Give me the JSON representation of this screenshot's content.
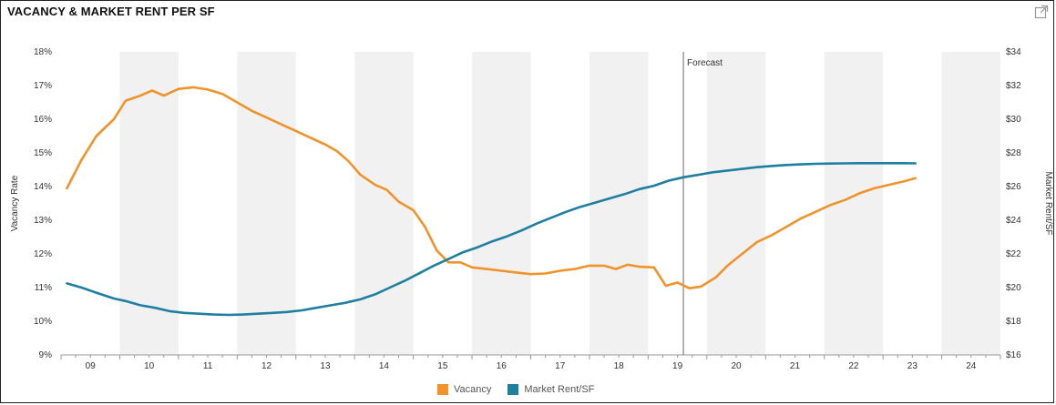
{
  "title": "VACANCY & MARKET RENT PER SF",
  "expand_icon": "external-link-icon",
  "chart_data": {
    "type": "line",
    "x_tick_labels": [
      "09",
      "10",
      "11",
      "12",
      "13",
      "14",
      "15",
      "16",
      "17",
      "18",
      "19",
      "20",
      "21",
      "22",
      "23",
      "24"
    ],
    "xlim": [
      2008.5,
      2024.5
    ],
    "left_axis": {
      "label": "Vacancy Rate",
      "ticks": [
        "9%",
        "10%",
        "11%",
        "12%",
        "13%",
        "14%",
        "15%",
        "16%",
        "17%",
        "18%"
      ],
      "ylim": [
        9,
        18
      ]
    },
    "right_axis": {
      "label": "Market Rent/SF",
      "ticks": [
        "$16",
        "$18",
        "$20",
        "$22",
        "$24",
        "$26",
        "$28",
        "$30",
        "$32",
        "$34"
      ],
      "ylim": [
        16,
        34
      ]
    },
    "annotation": {
      "text": "Forecast",
      "x": 2019.1
    },
    "shaded_bands": [
      [
        2009.5,
        2010.5
      ],
      [
        2011.5,
        2012.5
      ],
      [
        2013.5,
        2014.5
      ],
      [
        2015.5,
        2016.5
      ],
      [
        2017.5,
        2018.5
      ],
      [
        2019.5,
        2020.5
      ],
      [
        2021.5,
        2022.5
      ],
      [
        2023.5,
        2024.5
      ]
    ],
    "series": [
      {
        "name": "Vacancy",
        "axis": "left",
        "color": "#f0932b",
        "points": [
          [
            2008.6,
            13.95
          ],
          [
            2008.85,
            14.8
          ],
          [
            2009.1,
            15.5
          ],
          [
            2009.4,
            16.0
          ],
          [
            2009.6,
            16.55
          ],
          [
            2009.85,
            16.7
          ],
          [
            2010.05,
            16.85
          ],
          [
            2010.25,
            16.7
          ],
          [
            2010.5,
            16.9
          ],
          [
            2010.75,
            16.95
          ],
          [
            2011.0,
            16.88
          ],
          [
            2011.25,
            16.75
          ],
          [
            2011.5,
            16.5
          ],
          [
            2011.75,
            16.25
          ],
          [
            2012.0,
            16.05
          ],
          [
            2012.25,
            15.85
          ],
          [
            2012.5,
            15.65
          ],
          [
            2012.75,
            15.45
          ],
          [
            2013.0,
            15.25
          ],
          [
            2013.2,
            15.05
          ],
          [
            2013.4,
            14.75
          ],
          [
            2013.6,
            14.35
          ],
          [
            2013.85,
            14.05
          ],
          [
            2014.05,
            13.9
          ],
          [
            2014.25,
            13.55
          ],
          [
            2014.5,
            13.3
          ],
          [
            2014.7,
            12.8
          ],
          [
            2014.9,
            12.1
          ],
          [
            2015.1,
            11.75
          ],
          [
            2015.3,
            11.75
          ],
          [
            2015.5,
            11.6
          ],
          [
            2015.75,
            11.55
          ],
          [
            2016.0,
            11.5
          ],
          [
            2016.25,
            11.45
          ],
          [
            2016.5,
            11.4
          ],
          [
            2016.75,
            11.42
          ],
          [
            2017.0,
            11.5
          ],
          [
            2017.25,
            11.55
          ],
          [
            2017.5,
            11.65
          ],
          [
            2017.75,
            11.65
          ],
          [
            2017.95,
            11.55
          ],
          [
            2018.15,
            11.68
          ],
          [
            2018.35,
            11.62
          ],
          [
            2018.6,
            11.6
          ],
          [
            2018.8,
            11.05
          ],
          [
            2019.0,
            11.15
          ],
          [
            2019.2,
            10.98
          ],
          [
            2019.4,
            11.03
          ],
          [
            2019.65,
            11.3
          ],
          [
            2019.85,
            11.65
          ],
          [
            2020.1,
            12.0
          ],
          [
            2020.35,
            12.35
          ],
          [
            2020.6,
            12.55
          ],
          [
            2020.85,
            12.8
          ],
          [
            2021.1,
            13.05
          ],
          [
            2021.35,
            13.25
          ],
          [
            2021.6,
            13.45
          ],
          [
            2021.85,
            13.6
          ],
          [
            2022.1,
            13.8
          ],
          [
            2022.35,
            13.95
          ],
          [
            2022.6,
            14.05
          ],
          [
            2022.85,
            14.15
          ],
          [
            2023.05,
            14.25
          ]
        ]
      },
      {
        "name": "Market Rent/SF",
        "axis": "right",
        "color": "#1f7fa0",
        "points": [
          [
            2008.6,
            20.25
          ],
          [
            2008.85,
            20.0
          ],
          [
            2009.1,
            19.7
          ],
          [
            2009.4,
            19.35
          ],
          [
            2009.6,
            19.2
          ],
          [
            2009.85,
            18.95
          ],
          [
            2010.1,
            18.8
          ],
          [
            2010.35,
            18.6
          ],
          [
            2010.6,
            18.5
          ],
          [
            2010.85,
            18.45
          ],
          [
            2011.1,
            18.4
          ],
          [
            2011.35,
            18.38
          ],
          [
            2011.6,
            18.4
          ],
          [
            2011.85,
            18.45
          ],
          [
            2012.1,
            18.5
          ],
          [
            2012.35,
            18.55
          ],
          [
            2012.6,
            18.65
          ],
          [
            2012.85,
            18.8
          ],
          [
            2013.1,
            18.95
          ],
          [
            2013.35,
            19.1
          ],
          [
            2013.6,
            19.3
          ],
          [
            2013.85,
            19.6
          ],
          [
            2014.1,
            20.0
          ],
          [
            2014.35,
            20.4
          ],
          [
            2014.6,
            20.85
          ],
          [
            2014.85,
            21.3
          ],
          [
            2015.1,
            21.7
          ],
          [
            2015.35,
            22.1
          ],
          [
            2015.6,
            22.4
          ],
          [
            2015.85,
            22.75
          ],
          [
            2016.1,
            23.05
          ],
          [
            2016.35,
            23.4
          ],
          [
            2016.6,
            23.8
          ],
          [
            2016.85,
            24.15
          ],
          [
            2017.1,
            24.5
          ],
          [
            2017.35,
            24.8
          ],
          [
            2017.6,
            25.05
          ],
          [
            2017.85,
            25.3
          ],
          [
            2018.1,
            25.55
          ],
          [
            2018.35,
            25.85
          ],
          [
            2018.6,
            26.05
          ],
          [
            2018.85,
            26.35
          ],
          [
            2019.1,
            26.55
          ],
          [
            2019.35,
            26.7
          ],
          [
            2019.6,
            26.85
          ],
          [
            2019.85,
            26.95
          ],
          [
            2020.1,
            27.05
          ],
          [
            2020.35,
            27.15
          ],
          [
            2020.6,
            27.22
          ],
          [
            2020.85,
            27.28
          ],
          [
            2021.1,
            27.32
          ],
          [
            2021.35,
            27.35
          ],
          [
            2021.6,
            27.37
          ],
          [
            2021.85,
            27.38
          ],
          [
            2022.1,
            27.39
          ],
          [
            2022.35,
            27.39
          ],
          [
            2022.6,
            27.39
          ],
          [
            2022.85,
            27.39
          ],
          [
            2023.05,
            27.38
          ]
        ]
      }
    ]
  }
}
